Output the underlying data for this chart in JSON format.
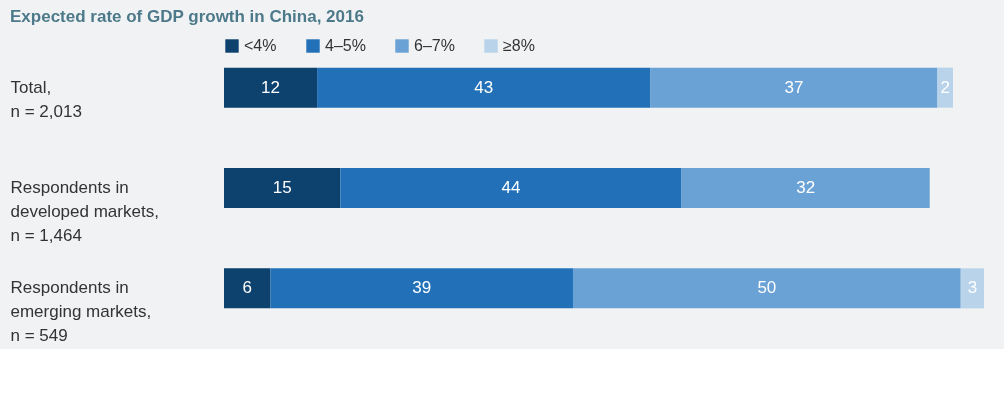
{
  "chart_data": {
    "type": "bar",
    "orientation": "horizontal",
    "stacked": true,
    "data_labels": true,
    "title": "Expected rate of GDP growth in China, 2016",
    "categories": [
      "Total,\nn = 2,013",
      "Respondents in\ndeveloped markets,\nn = 1,464",
      "Respondents in\nemerging markets,\nn = 549"
    ],
    "series": [
      {
        "name": "<4%",
        "color": "#0d416e",
        "values": [
          12,
          15,
          6
        ]
      },
      {
        "name": "4–5%",
        "color": "#2271b8",
        "values": [
          43,
          44,
          39
        ]
      },
      {
        "name": "6–7%",
        "color": "#6aa2d5",
        "values": [
          37,
          32,
          50
        ]
      },
      {
        "name": "≥8%",
        "color": "#b8d3ea",
        "values": [
          2,
          null,
          3
        ]
      }
    ],
    "legend": "top left"
  }
}
